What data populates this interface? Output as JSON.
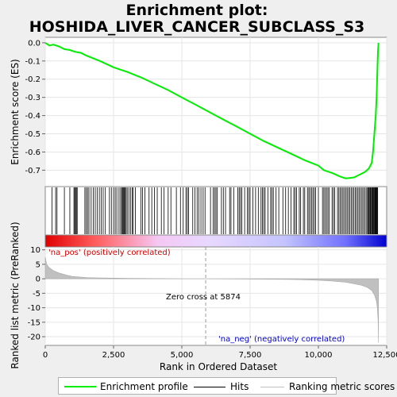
{
  "chart_data": {
    "type": "line",
    "title": "Enrichment plot: HOSHIDA_LIVER_CANCER_SUBCLASS_S3",
    "title_line1": "Enrichment plot:",
    "title_line2": "HOSHIDA_LIVER_CANCER_SUBCLASS_S3",
    "xlabel": "Rank in Ordered Dataset",
    "ylabel_top": "Enrichment score (ES)",
    "ylabel_bottom": "Ranked list metric (PreRanked)",
    "xlim": [
      0,
      12500
    ],
    "x_ticks": [
      0,
      2500,
      5000,
      7500,
      10000,
      12500
    ],
    "x_tick_labels": [
      "0",
      "2,500",
      "5,000",
      "7,500",
      "10,000",
      "12,500"
    ],
    "es_ylim": [
      -0.79,
      0.03
    ],
    "es_ticks": [
      0.0,
      -0.1,
      -0.2,
      -0.3,
      -0.4,
      -0.5,
      -0.6,
      -0.7
    ],
    "es_tick_labels": [
      "0.0",
      "-0.1",
      "-0.2",
      "-0.3",
      "-0.4",
      "-0.5",
      "-0.6",
      "-0.7"
    ],
    "metric_ylim": [
      -23,
      11
    ],
    "metric_ticks": [
      10,
      5,
      0,
      -5,
      -10,
      -15,
      -20
    ],
    "metric_tick_labels": [
      "10",
      "5",
      "0",
      "-5",
      "-10",
      "-15",
      "-20"
    ],
    "enrichment_profile": {
      "x": [
        0,
        150,
        300,
        500,
        700,
        900,
        1100,
        1300,
        1500,
        2000,
        2500,
        3000,
        3500,
        4000,
        4500,
        5000,
        5500,
        6000,
        6500,
        7000,
        7500,
        8000,
        8500,
        9000,
        9500,
        10000,
        10200,
        10500,
        10800,
        11000,
        11300,
        11500,
        11700,
        11850,
        11950,
        12000,
        12050,
        12100,
        12130,
        12160,
        12180,
        12200
      ],
      "y": [
        0.0,
        -0.015,
        -0.01,
        -0.02,
        -0.035,
        -0.04,
        -0.05,
        -0.055,
        -0.07,
        -0.1,
        -0.135,
        -0.16,
        -0.19,
        -0.225,
        -0.26,
        -0.3,
        -0.34,
        -0.38,
        -0.42,
        -0.46,
        -0.5,
        -0.54,
        -0.575,
        -0.61,
        -0.645,
        -0.675,
        -0.7,
        -0.715,
        -0.735,
        -0.745,
        -0.74,
        -0.725,
        -0.71,
        -0.69,
        -0.66,
        -0.6,
        -0.5,
        -0.4,
        -0.3,
        -0.15,
        -0.05,
        0.0
      ]
    },
    "ranked_metric": {
      "x": [
        0,
        50,
        150,
        300,
        500,
        800,
        1000,
        1500,
        2000,
        3000,
        4000,
        5000,
        5874,
        7000,
        8000,
        9000,
        9500,
        10000,
        10500,
        11000,
        11300,
        11600,
        11800,
        11950,
        12050,
        12120,
        12160,
        12190,
        12200
      ],
      "y": [
        7.5,
        5.0,
        3.8,
        2.8,
        2.0,
        1.2,
        0.8,
        0.45,
        0.3,
        0.15,
        0.08,
        0.03,
        0.0,
        -0.05,
        -0.12,
        -0.25,
        -0.35,
        -0.5,
        -0.8,
        -1.2,
        -1.7,
        -2.3,
        -3.0,
        -4.0,
        -5.5,
        -7.5,
        -10.0,
        -15.0,
        -22.0
      ]
    },
    "zero_cross": 5874,
    "zero_cross_label": "Zero cross at 5874",
    "pos_label": "'na_pos' (positively correlated)",
    "neg_label": "'na_neg' (negatively correlated)",
    "hits": [
      250,
      380,
      430,
      700,
      900,
      1050,
      1080,
      1110,
      1140,
      1170,
      1450,
      1500,
      1550,
      1600,
      1680,
      1760,
      1830,
      1900,
      1980,
      2050,
      2120,
      2200,
      2350,
      2420,
      2500,
      2560,
      2620,
      2700,
      2760,
      2800,
      2830,
      2860,
      2890,
      2920,
      2960,
      3000,
      3060,
      3120,
      3180,
      3220,
      3300,
      3500,
      3560,
      3650,
      3800,
      3900,
      4000,
      4100,
      4250,
      4350,
      4500,
      4600,
      4800,
      4950,
      5050,
      5150,
      5200,
      5250,
      5400,
      5480,
      5560,
      5620,
      5700,
      5780,
      5850,
      6050,
      6150,
      6200,
      6250,
      6300,
      6450,
      6520,
      6600,
      6750,
      6800,
      6900,
      7050,
      7100,
      7150,
      7200,
      7300,
      7400,
      7450,
      7500,
      7600,
      7700,
      7800,
      7900,
      7950,
      8000,
      8050,
      8150,
      8250,
      8300,
      8350,
      8450,
      8550,
      8700,
      8800,
      8900,
      9000,
      9100,
      9150,
      9200,
      9300,
      9350,
      9450,
      9500,
      9600,
      9650,
      9700,
      9750,
      9800,
      9850,
      9900,
      10000,
      10150,
      10200,
      10250,
      10300,
      10350,
      10400,
      10500,
      10550,
      10600,
      10700,
      10750,
      10800,
      10850,
      10900,
      10950,
      11000,
      11050,
      11100,
      11150,
      11200,
      11250,
      11300,
      11350,
      11400,
      11450,
      11500,
      11550,
      11600,
      11650,
      11700,
      11750,
      11800,
      11820,
      11850,
      11870,
      11900,
      11920,
      11950,
      11980,
      12000,
      12020,
      12050,
      12070,
      12090,
      12110,
      12130,
      12150,
      12170
    ]
  },
  "legend": {
    "enrichment_label": "Enrichment profile",
    "hits_label": "Hits",
    "ranking_label": "Ranking metric scores"
  },
  "colors": {
    "enrichment": "#00ee00",
    "hits": "#000000",
    "ranking": "#c0c0c0",
    "pos_text": "#cc0000",
    "neg_text": "#0000cc",
    "bar_pos": "#ff0000",
    "bar_neg": "#0000ff"
  }
}
